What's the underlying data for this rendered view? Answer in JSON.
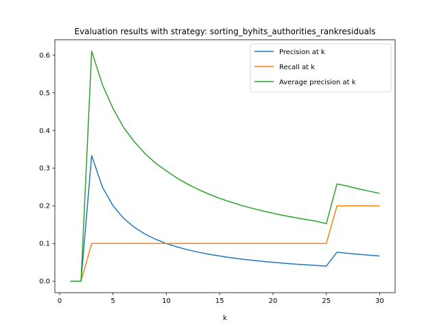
{
  "chart_data": {
    "type": "line",
    "title": "Evaluation results with strategy: sorting_byhits_authorities_rankresiduals",
    "xlabel": "k",
    "ylabel": "",
    "xlim": [
      -0.45,
      31.45
    ],
    "ylim": [
      -0.0305,
      0.6405
    ],
    "x_ticks": [
      0,
      5,
      10,
      15,
      20,
      25,
      30
    ],
    "y_ticks": [
      0.0,
      0.1,
      0.2,
      0.3,
      0.4,
      0.5,
      0.6
    ],
    "grid": false,
    "legend_position": "top-right",
    "x": [
      1,
      2,
      3,
      4,
      5,
      6,
      7,
      8,
      9,
      10,
      11,
      12,
      13,
      14,
      15,
      16,
      17,
      18,
      19,
      20,
      21,
      22,
      23,
      24,
      25,
      26,
      27,
      28,
      29,
      30
    ],
    "series": [
      {
        "name": "Precision at k",
        "color": "#1f77b4",
        "values": [
          0,
          0,
          0.3333,
          0.25,
          0.2,
          0.1667,
          0.1429,
          0.125,
          0.1111,
          0.1,
          0.0909,
          0.0833,
          0.0769,
          0.0714,
          0.0667,
          0.0625,
          0.0588,
          0.0556,
          0.0526,
          0.05,
          0.0476,
          0.0455,
          0.0435,
          0.0417,
          0.04,
          0.0769,
          0.0741,
          0.0714,
          0.069,
          0.0667
        ]
      },
      {
        "name": "Recall at k",
        "color": "#ff7f0e",
        "values": [
          0,
          0,
          0.1,
          0.1,
          0.1,
          0.1,
          0.1,
          0.1,
          0.1,
          0.1,
          0.1,
          0.1,
          0.1,
          0.1,
          0.1,
          0.1,
          0.1,
          0.1,
          0.1,
          0.1,
          0.1,
          0.1,
          0.1,
          0.1,
          0.1,
          0.2,
          0.2,
          0.2,
          0.2,
          0.2
        ]
      },
      {
        "name": "Average precision at k",
        "color": "#2ca02c",
        "values": [
          0,
          0,
          0.61,
          0.5217,
          0.4583,
          0.4074,
          0.37,
          0.3384,
          0.313,
          0.2927,
          0.2736,
          0.2574,
          0.2432,
          0.2309,
          0.2199,
          0.2102,
          0.2015,
          0.1937,
          0.1866,
          0.1802,
          0.1743,
          0.169,
          0.164,
          0.1595,
          0.1525,
          0.258,
          0.252,
          0.245,
          0.239,
          0.233
        ]
      }
    ]
  }
}
